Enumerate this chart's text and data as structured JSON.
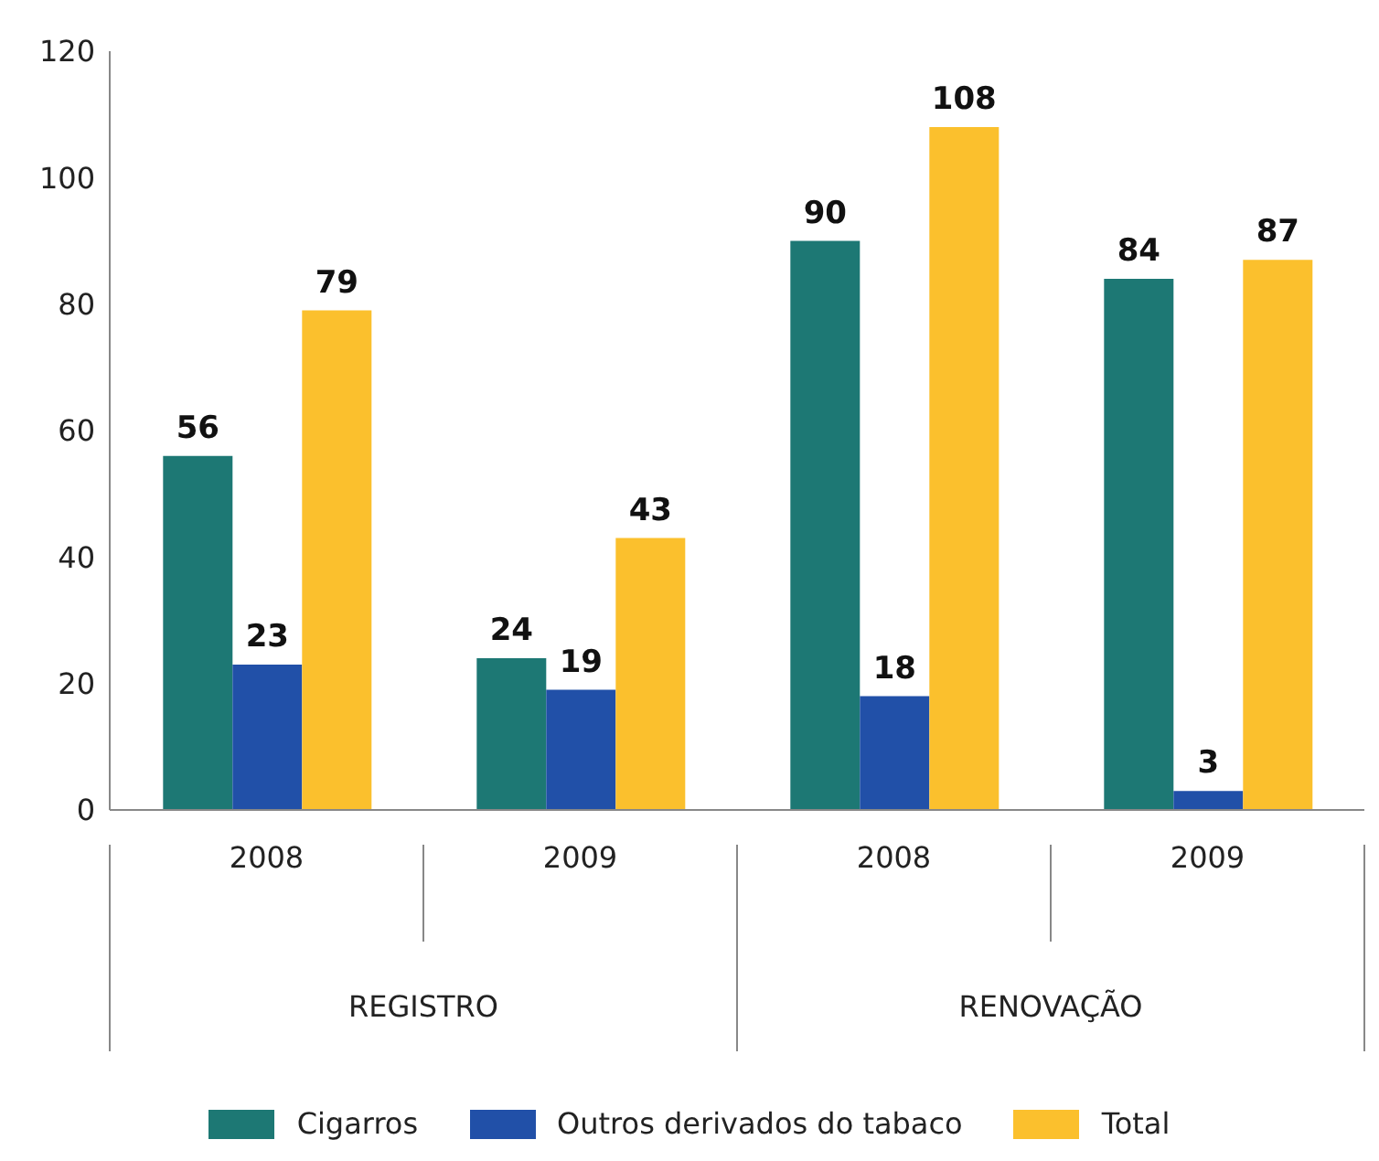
{
  "chart_data": {
    "type": "bar",
    "categories": [
      "2008",
      "2009",
      "2008",
      "2009"
    ],
    "series": [
      {
        "name": "Cigarros",
        "color": "#1d7874",
        "values": [
          56,
          24,
          90,
          84
        ]
      },
      {
        "name": "Outros derivados do tabaco",
        "color": "#2150a8",
        "values": [
          23,
          19,
          18,
          3
        ]
      },
      {
        "name": "Total",
        "color": "#fbc02d",
        "values": [
          79,
          43,
          108,
          87
        ]
      }
    ],
    "ylim": [
      0,
      120
    ],
    "yticks": [
      0,
      20,
      40,
      60,
      80,
      100,
      120
    ],
    "data_labels": true,
    "grid": false,
    "legend": "bottom",
    "annotations": [
      "REGISTRO",
      "RENOVAÇÃO"
    ]
  }
}
